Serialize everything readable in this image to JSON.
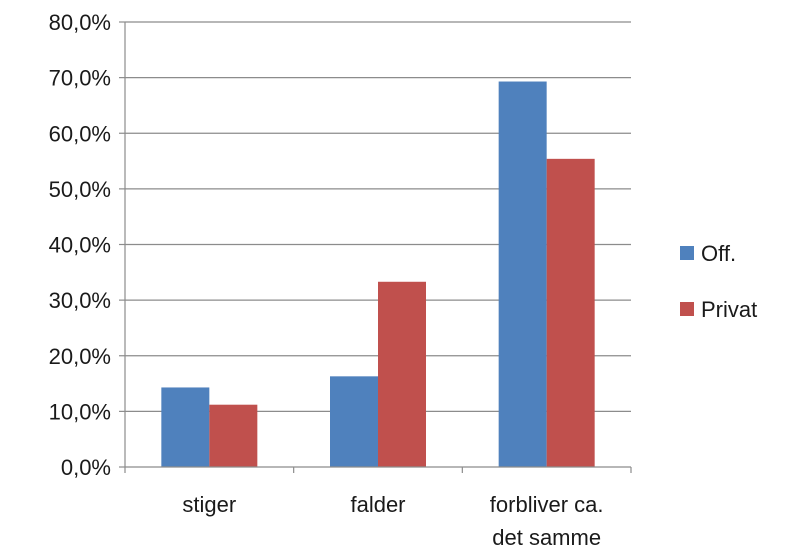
{
  "chart_data": {
    "type": "bar",
    "categories": [
      [
        "stiger"
      ],
      [
        "falder"
      ],
      [
        "forbliver ca.",
        "det samme"
      ]
    ],
    "series": [
      {
        "name": "Off.",
        "color": "#4f81bd",
        "values": [
          14.3,
          16.3,
          69.3
        ]
      },
      {
        "name": "Privat",
        "color": "#c0504d",
        "values": [
          11.2,
          33.3,
          55.4
        ]
      }
    ],
    "ylim": [
      0,
      80
    ],
    "yticks": [
      0,
      10,
      20,
      30,
      40,
      50,
      60,
      70,
      80
    ],
    "ytick_labels": [
      "0,0%",
      "10,0%",
      "20,0%",
      "30,0%",
      "40,0%",
      "50,0%",
      "60,0%",
      "70,0%",
      "80,0%"
    ],
    "grid": true,
    "legend_position": "right",
    "title": "",
    "xlabel": "",
    "ylabel": ""
  }
}
